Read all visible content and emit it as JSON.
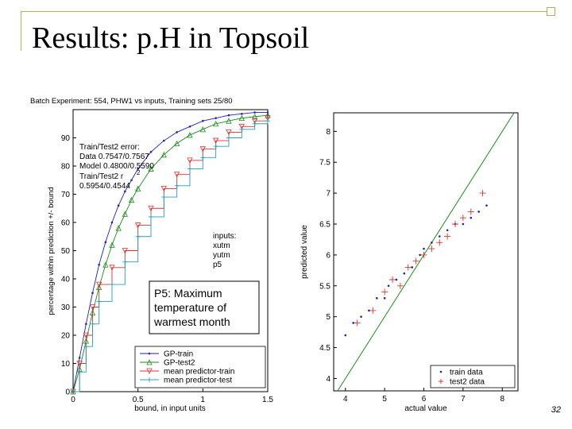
{
  "slide": {
    "title": "Results: p.H in Topsoil",
    "page_number": "32",
    "accent_color": "#b8ad4f"
  },
  "chart_data": [
    {
      "type": "line",
      "title": "Batch Experiment: 554, PHW1 vs inputs, Training sets 25/80",
      "xlabel": "bound, in input units",
      "ylabel": "percentage within prediction +/- bound",
      "xlim": [
        0,
        1.5
      ],
      "ylim": [
        0,
        100
      ],
      "x_ticks": [
        "0",
        "0.5",
        "1",
        "1.5"
      ],
      "y_ticks": [
        "0",
        "10",
        "20",
        "30",
        "40",
        "50",
        "60",
        "70",
        "80",
        "90"
      ],
      "grid": false,
      "legend_position": "bottom-right",
      "series": [
        {
          "name": "GP-train",
          "marker": "dot",
          "color": "#1f1fbf",
          "x": [
            0,
            0.05,
            0.1,
            0.15,
            0.2,
            0.25,
            0.3,
            0.35,
            0.4,
            0.45,
            0.5,
            0.6,
            0.7,
            0.8,
            0.9,
            1.0,
            1.1,
            1.2,
            1.3,
            1.4,
            1.5
          ],
          "y": [
            0,
            12,
            24,
            35,
            45,
            53,
            60,
            66,
            71,
            75,
            79,
            85,
            89,
            92,
            94,
            96,
            97,
            98,
            98.5,
            99,
            99
          ]
        },
        {
          "name": "GP-test2",
          "marker": "triangle",
          "color": "#1a8c1a",
          "x": [
            0,
            0.05,
            0.1,
            0.15,
            0.2,
            0.25,
            0.3,
            0.35,
            0.4,
            0.45,
            0.5,
            0.6,
            0.7,
            0.8,
            0.9,
            1.0,
            1.1,
            1.2,
            1.3,
            1.4,
            1.5
          ],
          "y": [
            0,
            8,
            18,
            28,
            37,
            45,
            52,
            58,
            63,
            68,
            72,
            79,
            84,
            88,
            91,
            93,
            95,
            96,
            97,
            97.5,
            98
          ]
        },
        {
          "name": "mean predictor-train",
          "marker": "triangle-down",
          "color": "#e03030",
          "x": [
            0,
            0.05,
            0.1,
            0.15,
            0.2,
            0.3,
            0.4,
            0.5,
            0.6,
            0.7,
            0.8,
            0.9,
            1.0,
            1.1,
            1.2,
            1.3,
            1.4,
            1.5
          ],
          "y": [
            0,
            10,
            20,
            30,
            38,
            44,
            50,
            59,
            65,
            72,
            77,
            82,
            86,
            89,
            92,
            94,
            96,
            97
          ]
        },
        {
          "name": "mean predictor-test",
          "marker": "plus",
          "color": "#20a0c0",
          "x": [
            0,
            0.05,
            0.1,
            0.15,
            0.2,
            0.3,
            0.4,
            0.5,
            0.6,
            0.7,
            0.8,
            0.9,
            1.0,
            1.1,
            1.2,
            1.3,
            1.4,
            1.5
          ],
          "y": [
            0,
            7,
            16,
            24,
            32,
            38,
            46,
            55,
            62,
            69,
            73,
            79,
            83,
            87,
            90,
            93,
            95,
            96
          ]
        }
      ],
      "annotations": [
        "Train/Test2 error:",
        "Data  0.7547/0.7567",
        "Model 0.4800/0.5590",
        "Train/Test2 r",
        "0.5954/0.4544"
      ],
      "inputs_label": [
        "inputs:",
        "xutm",
        "yutm",
        "p5"
      ],
      "callout": [
        "P5: Maximum",
        "temperature of",
        "warmest month"
      ]
    },
    {
      "type": "scatter",
      "xlabel": "actual value",
      "ylabel": "predicted value",
      "xlim": [
        3.7,
        8.4
      ],
      "ylim": [
        3.8,
        8.3
      ],
      "x_ticks": [
        "4",
        "5",
        "6",
        "7",
        "8"
      ],
      "y_ticks": [
        "4",
        "4.5",
        "5",
        "5.5",
        "6",
        "6.5",
        "7",
        "7.5",
        "8"
      ],
      "grid": false,
      "reference_line": "y = x",
      "legend_position": "bottom-right",
      "series": [
        {
          "name": "train data",
          "marker": "dot",
          "color": "#1f1fbf",
          "x": [
            4.0,
            4.2,
            4.4,
            4.6,
            4.8,
            5.0,
            5.1,
            5.3,
            5.5,
            5.7,
            5.9,
            6.0,
            6.2,
            6.4,
            6.6,
            6.8,
            7.0,
            7.2,
            7.4,
            7.6
          ],
          "y": [
            4.7,
            4.9,
            5.0,
            5.1,
            5.3,
            5.3,
            5.5,
            5.6,
            5.7,
            5.8,
            6.0,
            6.1,
            6.2,
            6.3,
            6.4,
            6.5,
            6.5,
            6.6,
            6.7,
            6.8
          ]
        },
        {
          "name": "test2 data",
          "marker": "plus",
          "color": "#e03030",
          "x": [
            4.3,
            4.7,
            5.0,
            5.2,
            5.4,
            5.6,
            5.8,
            6.0,
            6.2,
            6.4,
            6.6,
            6.8,
            7.0,
            7.2,
            7.5
          ],
          "y": [
            4.9,
            5.1,
            5.4,
            5.6,
            5.5,
            5.8,
            5.9,
            6.0,
            6.1,
            6.2,
            6.3,
            6.5,
            6.6,
            6.7,
            7.0
          ]
        }
      ]
    }
  ]
}
